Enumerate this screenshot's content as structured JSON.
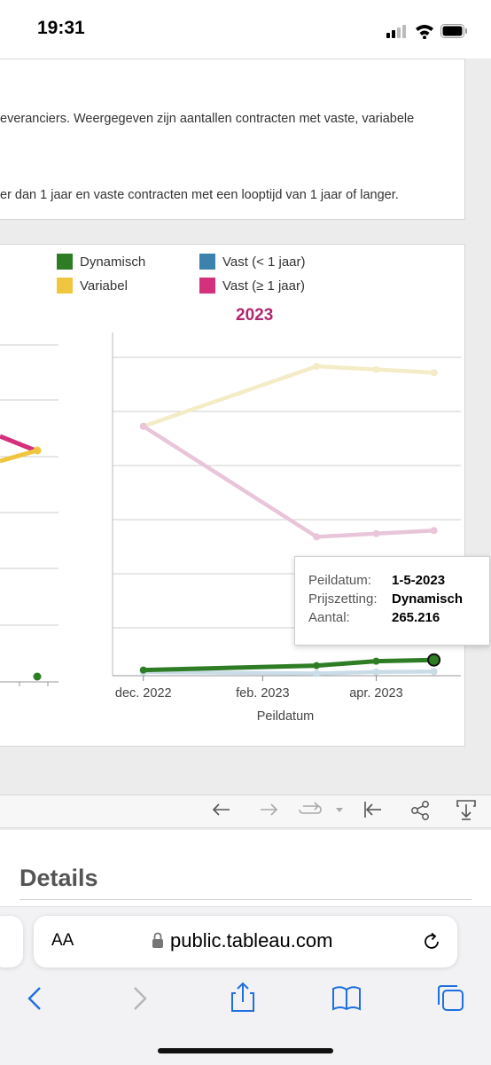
{
  "status_bar": {
    "time": "19:31"
  },
  "description": {
    "line1": "everanciers. Weergegeven zijn aantallen contracten met vaste, variabele",
    "line2": "er dan 1 jaar en vaste contracten met een looptijd van 1 jaar of langer."
  },
  "legend": [
    {
      "label": "Dynamisch",
      "color": "#2e7d25"
    },
    {
      "label": "Vast (< 1 jaar)",
      "color": "#3c82ad"
    },
    {
      "label": "Variabel",
      "color": "#f0c63e"
    },
    {
      "label": "Vast (≥ 1 jaar)",
      "color": "#d4307b"
    }
  ],
  "tooltip": {
    "rows": [
      {
        "key": "Peildatum:",
        "value": "1-5-2023"
      },
      {
        "key": "Prijszetting:",
        "value": "Dynamisch"
      },
      {
        "key": "Aantal:",
        "value": "265.216"
      }
    ]
  },
  "chart_data": {
    "type": "line",
    "title": "2023",
    "xlabel": "Peildatum",
    "x_tick_labels": [
      "dec. 2022",
      "feb. 2023",
      "apr. 2023"
    ],
    "x": [
      "2022-12-01",
      "2023-03-01",
      "2023-04-01",
      "2023-05-01"
    ],
    "highlighted_series": "Dynamisch",
    "series": [
      {
        "name": "Variabel",
        "color": "#f0c63e",
        "faded": true,
        "values": [
          0.79,
          0.98,
          0.97,
          0.96
        ]
      },
      {
        "name": "Vast (≥ 1 jaar)",
        "color": "#d4307b",
        "faded": true,
        "values": [
          0.79,
          0.44,
          0.45,
          0.46
        ]
      },
      {
        "name": "Vast (< 1 jaar)",
        "color": "#3c82ad",
        "faded": true,
        "values": [
          0.012,
          0.007,
          0.012,
          0.013
        ]
      },
      {
        "name": "Dynamisch",
        "color": "#2e7d25",
        "faded": false,
        "values": [
          0.018,
          0.032,
          0.046,
          0.05
        ]
      }
    ],
    "grid": true,
    "legend_position": "top"
  },
  "left_chart_fragment": {
    "series": [
      {
        "name": "Vast (≥ 1 jaar)",
        "color": "#d4307b"
      },
      {
        "name": "Variabel",
        "color": "#f0c63e"
      },
      {
        "name": "Dynamisch",
        "color": "#2e7d25"
      }
    ]
  },
  "toolbar": {
    "icons": [
      "undo-icon",
      "redo-icon",
      "revert-icon",
      "reset-icon",
      "share-icon",
      "download-icon"
    ]
  },
  "details_heading": "Details",
  "browser": {
    "aa_label": "AA",
    "url": "public.tableau.com"
  }
}
